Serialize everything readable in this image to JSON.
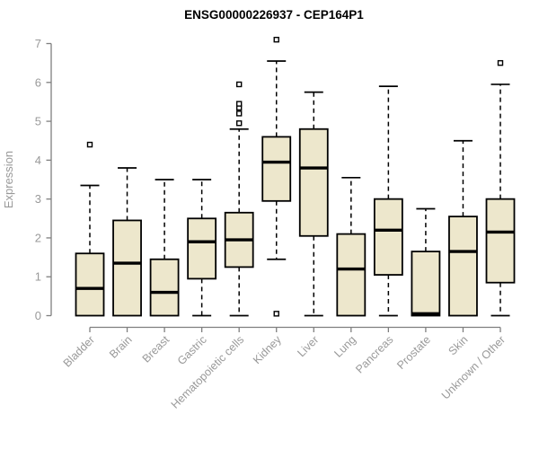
{
  "title": "ENSG00000226937 - CEP164P1",
  "chart_data": {
    "type": "boxplot",
    "title": "ENSG00000226937 - CEP164P1",
    "ylabel": "Expression",
    "xlabel": "",
    "ylim": [
      0,
      7
    ],
    "yticks": [
      0,
      1,
      2,
      3,
      4,
      5,
      6,
      7
    ],
    "grid": false,
    "legend": "none",
    "categories": [
      "Bladder",
      "Brain",
      "Breast",
      "Gastric",
      "Hematopoietic cells",
      "Kidney",
      "Liver",
      "Lung",
      "Pancreas",
      "Prostate",
      "Skin",
      "Unknown / Other"
    ],
    "series": [
      {
        "label": "Bladder",
        "low": 0,
        "q1": 0,
        "median": 0.7,
        "q3": 1.6,
        "high": 3.35,
        "outliers": [
          4.4
        ]
      },
      {
        "label": "Brain",
        "low": 0,
        "q1": 0,
        "median": 1.35,
        "q3": 2.45,
        "high": 3.8,
        "outliers": []
      },
      {
        "label": "Breast",
        "low": 0,
        "q1": 0,
        "median": 0.6,
        "q3": 1.45,
        "high": 3.5,
        "outliers": []
      },
      {
        "label": "Gastric",
        "low": 0,
        "q1": 0.95,
        "median": 1.9,
        "q3": 2.5,
        "high": 3.5,
        "outliers": []
      },
      {
        "label": "Hematopoietic cells",
        "low": 0,
        "q1": 1.25,
        "median": 1.95,
        "q3": 2.65,
        "high": 4.8,
        "outliers": [
          4.95,
          5.2,
          5.35,
          5.45,
          5.95
        ]
      },
      {
        "label": "Kidney",
        "low": 1.45,
        "q1": 2.95,
        "median": 3.95,
        "q3": 4.6,
        "high": 6.55,
        "outliers": [
          7.1,
          0.05
        ]
      },
      {
        "label": "Liver",
        "low": 0,
        "q1": 2.05,
        "median": 3.8,
        "q3": 4.8,
        "high": 5.75,
        "outliers": []
      },
      {
        "label": "Lung",
        "low": 0,
        "q1": 0,
        "median": 1.2,
        "q3": 2.1,
        "high": 3.55,
        "outliers": []
      },
      {
        "label": "Pancreas",
        "low": 0,
        "q1": 1.05,
        "median": 2.2,
        "q3": 3.0,
        "high": 5.9,
        "outliers": []
      },
      {
        "label": "Prostate",
        "low": 0,
        "q1": 0,
        "median": 0.05,
        "q3": 1.65,
        "high": 2.75,
        "outliers": []
      },
      {
        "label": "Skin",
        "low": 0,
        "q1": 0,
        "median": 1.65,
        "q3": 2.55,
        "high": 4.5,
        "outliers": []
      },
      {
        "label": "Unknown / Other",
        "low": 0,
        "q1": 0.85,
        "median": 2.15,
        "q3": 3.0,
        "high": 5.95,
        "outliers": [
          6.5
        ]
      }
    ],
    "colors": {
      "box_fill": "#EDE7CC",
      "box_stroke": "#000000",
      "median": "#000000",
      "whisker": "#000000",
      "outlier_fill": "#ffffff",
      "outlier_stroke": "#000000",
      "axis": "#7f7f7f",
      "tick_label": "#999999",
      "title": "#000000",
      "background": "#ffffff"
    }
  }
}
